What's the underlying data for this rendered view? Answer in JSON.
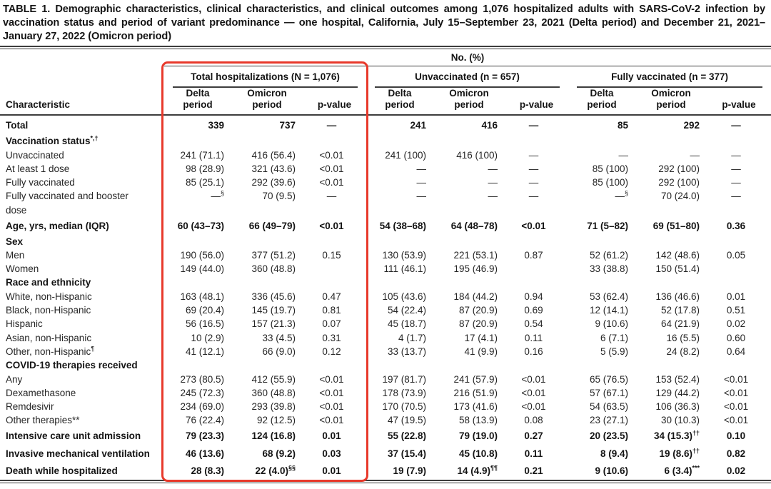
{
  "title": "TABLE 1. Demographic characteristics, clinical characteristics, and clinical outcomes among 1,076 hospitalized adults with SARS-CoV-2 infection by vaccination status and period of variant predominance — one hospital, California, July 15–September 23, 2021 (Delta period) and December 21, 2021–January 27, 2022 (Omicron period)",
  "highlight_color": "#e8392b",
  "table": {
    "unit_header": "No. (%)",
    "row_header": "Characteristic",
    "groups": [
      {
        "label": "Total hospitalizations (N = 1,076)",
        "highlighted": true
      },
      {
        "label": "Unvaccinated (n = 657)",
        "highlighted": false
      },
      {
        "label": "Fully vaccinated (n = 377)",
        "highlighted": false
      }
    ],
    "subcolumns": [
      "Delta period",
      "Omicron period",
      "p-value"
    ],
    "rows": [
      {
        "label": "Total",
        "style": "bold",
        "cells": [
          "339",
          "737",
          "—",
          "241",
          "416",
          "—",
          "85",
          "292",
          "—"
        ]
      },
      {
        "label": "Vaccination status^{*,†}",
        "style": "section",
        "cells": []
      },
      {
        "label": "Unvaccinated",
        "style": "item",
        "cells": [
          "241 (71.1)",
          "416 (56.4)",
          "<0.01",
          "241 (100)",
          "416 (100)",
          "—",
          "—",
          "—",
          "—"
        ]
      },
      {
        "label": "At least 1 dose",
        "style": "item",
        "cells": [
          "98 (28.9)",
          "321 (43.6)",
          "<0.01",
          "—",
          "—",
          "—",
          "85 (100)",
          "292 (100)",
          "—"
        ]
      },
      {
        "label": "Fully vaccinated",
        "style": "item",
        "cells": [
          "85 (25.1)",
          "292 (39.6)",
          "<0.01",
          "—",
          "—",
          "—",
          "85 (100)",
          "292 (100)",
          "—"
        ]
      },
      {
        "label": "Fully vaccinated and booster\ndose",
        "style": "item",
        "cells": [
          "—^{§}",
          "70 (9.5)",
          "—",
          "—",
          "—",
          "—",
          "—^{§}",
          "70 (24.0)",
          "—"
        ]
      },
      {
        "label": "Age, yrs, median (IQR)",
        "style": "bold",
        "cells": [
          "60 (43–73)",
          "66 (49–79)",
          "<0.01",
          "54 (38–68)",
          "64 (48–78)",
          "<0.01",
          "71 (5–82)",
          "69 (51–80)",
          "0.36"
        ]
      },
      {
        "label": "Sex",
        "style": "section",
        "cells": []
      },
      {
        "label": "Men",
        "style": "item",
        "cells": [
          "190 (56.0)",
          "377 (51.2)",
          "0.15",
          "130 (53.9)",
          "221 (53.1)",
          "0.87",
          "52 (61.2)",
          "142 (48.6)",
          "0.05"
        ]
      },
      {
        "label": "Women",
        "style": "item",
        "cells": [
          "149 (44.0)",
          "360 (48.8)",
          "",
          "111 (46.1)",
          "195 (46.9)",
          "",
          "33 (38.8)",
          "150 (51.4)",
          ""
        ]
      },
      {
        "label": "Race and ethnicity",
        "style": "section",
        "cells": []
      },
      {
        "label": "White, non-Hispanic",
        "style": "item",
        "cells": [
          "163 (48.1)",
          "336 (45.6)",
          "0.47",
          "105 (43.6)",
          "184 (44.2)",
          "0.94",
          "53 (62.4)",
          "136 (46.6)",
          "0.01"
        ]
      },
      {
        "label": "Black, non-Hispanic",
        "style": "item",
        "cells": [
          "69 (20.4)",
          "145 (19.7)",
          "0.81",
          "54 (22.4)",
          "87 (20.9)",
          "0.69",
          "12 (14.1)",
          "52 (17.8)",
          "0.51"
        ]
      },
      {
        "label": "Hispanic",
        "style": "item",
        "cells": [
          "56 (16.5)",
          "157 (21.3)",
          "0.07",
          "45 (18.7)",
          "87 (20.9)",
          "0.54",
          "9 (10.6)",
          "64 (21.9)",
          "0.02"
        ]
      },
      {
        "label": "Asian, non-Hispanic",
        "style": "item",
        "cells": [
          "10 (2.9)",
          "33 (4.5)",
          "0.31",
          "4 (1.7)",
          "17 (4.1)",
          "0.11",
          "6 (7.1)",
          "16 (5.5)",
          "0.60"
        ]
      },
      {
        "label": "Other, non-Hispanic^{¶}",
        "style": "item",
        "cells": [
          "41 (12.1)",
          "66 (9.0)",
          "0.12",
          "33 (13.7)",
          "41 (9.9)",
          "0.16",
          "5 (5.9)",
          "24 (8.2)",
          "0.64"
        ]
      },
      {
        "label": "COVID-19 therapies received",
        "style": "section",
        "cells": []
      },
      {
        "label": "Any",
        "style": "item",
        "cells": [
          "273 (80.5)",
          "412 (55.9)",
          "<0.01",
          "197 (81.7)",
          "241 (57.9)",
          "<0.01",
          "65 (76.5)",
          "153 (52.4)",
          "<0.01"
        ]
      },
      {
        "label": "Dexamethasone",
        "style": "item",
        "cells": [
          "245 (72.3)",
          "360 (48.8)",
          "<0.01",
          "178 (73.9)",
          "216 (51.9)",
          "<0.01",
          "57 (67.1)",
          "129 (44.2)",
          "<0.01"
        ]
      },
      {
        "label": "Remdesivir",
        "style": "item",
        "cells": [
          "234 (69.0)",
          "293 (39.8)",
          "<0.01",
          "170 (70.5)",
          "173 (41.6)",
          "<0.01",
          "54 (63.5)",
          "106 (36.3)",
          "<0.01"
        ]
      },
      {
        "label": "Other therapies**",
        "style": "item",
        "cells": [
          "76 (22.4)",
          "92 (12.5)",
          "<0.01",
          "47 (19.5)",
          "58 (13.9)",
          "0.08",
          "23 (27.1)",
          "30 (10.3)",
          "<0.01"
        ]
      },
      {
        "label": "Intensive care unit admission",
        "style": "bold",
        "cells": [
          "79 (23.3)",
          "124 (16.8)",
          "0.01",
          "55 (22.8)",
          "79 (19.0)",
          "0.27",
          "20 (23.5)",
          "34 (15.3)^{††}",
          "0.10"
        ]
      },
      {
        "label": "Invasive mechanical ventilation",
        "style": "bold",
        "cells": [
          "46 (13.6)",
          "68 (9.2)",
          "0.03",
          "37 (15.4)",
          "45 (10.8)",
          "0.11",
          "8 (9.4)",
          "19 (8.6)^{††}",
          "0.82"
        ]
      },
      {
        "label": "Death while hospitalized",
        "style": "bold",
        "cells": [
          "28 (8.3)",
          "22 (4.0)^{§§}",
          "0.01",
          "19 (7.9)",
          "14 (4.9)^{¶¶}",
          "0.21",
          "9 (10.6)",
          "6 (3.4)^{***}",
          "0.02"
        ]
      }
    ]
  }
}
